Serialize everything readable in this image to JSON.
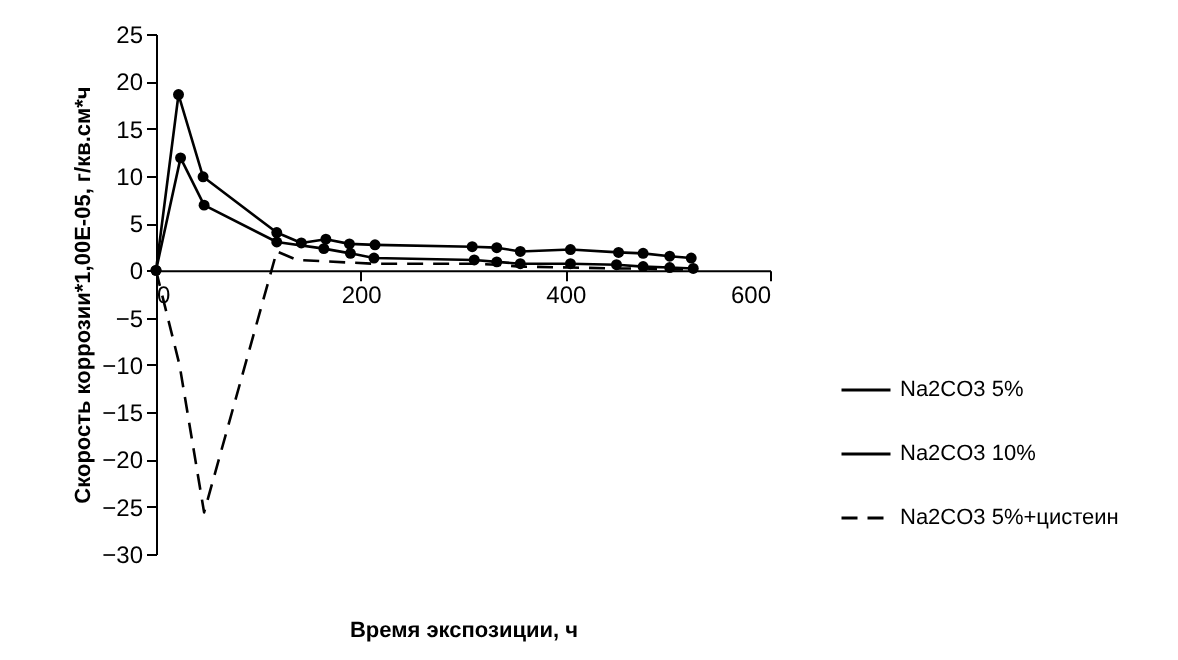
{
  "chart_data": {
    "type": "line",
    "xlabel": "Время экспозиции, ч",
    "ylabel": "Скорость коррозии*1,00E-05, г/кв.см*ч",
    "xlim": [
      0,
      600
    ],
    "xticks": [
      0,
      200,
      400,
      600
    ],
    "ylim": [
      -30,
      25
    ],
    "yticks": [
      -30,
      -25,
      -20,
      -15,
      -10,
      -5,
      0,
      5,
      10,
      15,
      20,
      25
    ],
    "grid": false,
    "legend": "right",
    "series": [
      {
        "name": "Na2CO3 5%",
        "color": "#000000",
        "marker": "circle",
        "line_style": "solid",
        "x": [
          0,
          24,
          47,
          118,
          164,
          190,
          213,
          311,
          333,
          356,
          405,
          450,
          476,
          502,
          525
        ],
        "values": [
          0,
          11.9,
          6.9,
          3.0,
          2.3,
          1.8,
          1.3,
          1.1,
          0.9,
          0.7,
          0.7,
          0.6,
          0.4,
          0.3,
          0.2
        ]
      },
      {
        "name": "Na2CO3 10%",
        "color": "#000000",
        "marker": "circle",
        "line_style": "solid",
        "x": [
          0,
          22,
          46,
          118,
          142,
          166,
          189,
          214,
          309,
          333,
          356,
          405,
          452,
          476,
          502,
          523
        ],
        "values": [
          0,
          18.6,
          9.9,
          4.0,
          2.9,
          3.3,
          2.8,
          2.7,
          2.5,
          2.4,
          2.0,
          2.2,
          1.9,
          1.8,
          1.5,
          1.3
        ]
      },
      {
        "name": "Na2CO3 5%+цистеин",
        "color": "#000000",
        "marker": "none",
        "line_style": "dashed",
        "x": [
          0,
          23,
          47,
          118,
          138,
          213,
          311,
          333,
          356,
          405,
          450,
          476,
          502,
          525
        ],
        "values": [
          0,
          -10.0,
          -25.6,
          2.0,
          1.1,
          0.7,
          0.7,
          0.6,
          0.4,
          0.3,
          0.2,
          0.2,
          0.1,
          0.1
        ]
      }
    ]
  }
}
